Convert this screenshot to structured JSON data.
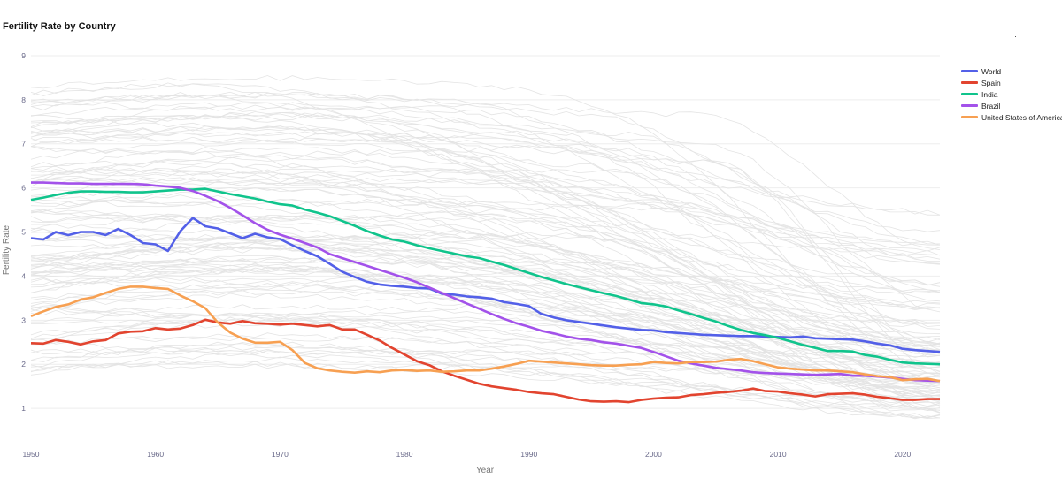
{
  "chart_data": {
    "type": "line",
    "title": "Fertility Rate by Country",
    "xlabel": "Year",
    "ylabel": "Fertility Rate",
    "xlim": [
      1950,
      2023
    ],
    "ylim": [
      0,
      9.5
    ],
    "x_ticks": [
      1950,
      1960,
      1970,
      1980,
      1990,
      2000,
      2010,
      2020
    ],
    "y_ticks": [
      1,
      2,
      3,
      4,
      5,
      6,
      7,
      8,
      9
    ],
    "grid": "horizontal",
    "legend_position": "right",
    "background_series_color": "#e4e4e4",
    "series": [
      {
        "name": "World",
        "color": "#5360e8",
        "x": [
          1950,
          1951,
          1952,
          1953,
          1954,
          1955,
          1956,
          1957,
          1958,
          1959,
          1960,
          1961,
          1962,
          1963,
          1964,
          1965,
          1966,
          1967,
          1968,
          1969,
          1970,
          1971,
          1972,
          1973,
          1974,
          1975,
          1976,
          1977,
          1978,
          1979,
          1980,
          1981,
          1982,
          1983,
          1984,
          1985,
          1986,
          1987,
          1988,
          1989,
          1990,
          1991,
          1992,
          1993,
          1994,
          1995,
          1996,
          1997,
          1998,
          1999,
          2000,
          2001,
          2002,
          2003,
          2004,
          2005,
          2006,
          2007,
          2008,
          2009,
          2010,
          2011,
          2012,
          2013,
          2014,
          2015,
          2016,
          2017,
          2018,
          2019,
          2020,
          2021,
          2022,
          2023
        ],
        "values": [
          4.86,
          4.83,
          5.0,
          4.93,
          5.0,
          5.0,
          4.93,
          5.07,
          4.93,
          4.75,
          4.72,
          4.57,
          5.02,
          5.32,
          5.13,
          5.08,
          4.97,
          4.86,
          4.96,
          4.88,
          4.84,
          4.7,
          4.57,
          4.45,
          4.28,
          4.1,
          3.98,
          3.87,
          3.81,
          3.78,
          3.76,
          3.73,
          3.72,
          3.6,
          3.58,
          3.54,
          3.52,
          3.49,
          3.41,
          3.37,
          3.32,
          3.14,
          3.06,
          3.0,
          2.96,
          2.92,
          2.88,
          2.84,
          2.81,
          2.78,
          2.77,
          2.73,
          2.71,
          2.69,
          2.67,
          2.66,
          2.65,
          2.64,
          2.64,
          2.63,
          2.62,
          2.61,
          2.63,
          2.59,
          2.58,
          2.57,
          2.56,
          2.52,
          2.47,
          2.43,
          2.35,
          2.32,
          2.3,
          2.28
        ]
      },
      {
        "name": "Spain",
        "color": "#e2442f",
        "x": [
          1950,
          1951,
          1952,
          1953,
          1954,
          1955,
          1956,
          1957,
          1958,
          1959,
          1960,
          1961,
          1962,
          1963,
          1964,
          1965,
          1966,
          1967,
          1968,
          1969,
          1970,
          1971,
          1972,
          1973,
          1974,
          1975,
          1976,
          1977,
          1978,
          1979,
          1980,
          1981,
          1982,
          1983,
          1984,
          1985,
          1986,
          1987,
          1988,
          1989,
          1990,
          1991,
          1992,
          1993,
          1994,
          1995,
          1996,
          1997,
          1998,
          1999,
          2000,
          2001,
          2002,
          2003,
          2004,
          2005,
          2006,
          2007,
          2008,
          2009,
          2010,
          2011,
          2012,
          2013,
          2014,
          2015,
          2016,
          2017,
          2018,
          2019,
          2020,
          2021,
          2022,
          2023
        ],
        "values": [
          2.48,
          2.47,
          2.55,
          2.51,
          2.45,
          2.52,
          2.55,
          2.7,
          2.74,
          2.75,
          2.82,
          2.79,
          2.81,
          2.89,
          3.01,
          2.95,
          2.92,
          2.98,
          2.93,
          2.92,
          2.9,
          2.92,
          2.89,
          2.86,
          2.89,
          2.79,
          2.79,
          2.67,
          2.54,
          2.37,
          2.22,
          2.07,
          1.98,
          1.84,
          1.74,
          1.65,
          1.56,
          1.5,
          1.46,
          1.42,
          1.37,
          1.34,
          1.32,
          1.26,
          1.2,
          1.16,
          1.15,
          1.16,
          1.14,
          1.19,
          1.22,
          1.24,
          1.25,
          1.3,
          1.32,
          1.35,
          1.37,
          1.4,
          1.45,
          1.39,
          1.38,
          1.34,
          1.31,
          1.27,
          1.32,
          1.33,
          1.34,
          1.31,
          1.26,
          1.23,
          1.19,
          1.19,
          1.21,
          1.21
        ]
      },
      {
        "name": "India",
        "color": "#10c48c",
        "x": [
          1950,
          1951,
          1952,
          1953,
          1954,
          1955,
          1956,
          1957,
          1958,
          1959,
          1960,
          1961,
          1962,
          1963,
          1964,
          1965,
          1966,
          1967,
          1968,
          1969,
          1970,
          1971,
          1972,
          1973,
          1974,
          1975,
          1976,
          1977,
          1978,
          1979,
          1980,
          1981,
          1982,
          1983,
          1984,
          1985,
          1986,
          1987,
          1988,
          1989,
          1990,
          1991,
          1992,
          1993,
          1994,
          1995,
          1996,
          1997,
          1998,
          1999,
          2000,
          2001,
          2002,
          2003,
          2004,
          2005,
          2006,
          2007,
          2008,
          2009,
          2010,
          2011,
          2012,
          2013,
          2014,
          2015,
          2016,
          2017,
          2018,
          2019,
          2020,
          2021,
          2022,
          2023
        ],
        "values": [
          5.73,
          5.78,
          5.84,
          5.89,
          5.92,
          5.92,
          5.91,
          5.91,
          5.9,
          5.9,
          5.92,
          5.94,
          5.96,
          5.96,
          5.98,
          5.92,
          5.86,
          5.81,
          5.76,
          5.69,
          5.63,
          5.6,
          5.51,
          5.44,
          5.36,
          5.25,
          5.14,
          5.02,
          4.92,
          4.83,
          4.78,
          4.7,
          4.63,
          4.57,
          4.51,
          4.45,
          4.41,
          4.33,
          4.25,
          4.16,
          4.07,
          3.98,
          3.9,
          3.82,
          3.75,
          3.68,
          3.61,
          3.55,
          3.47,
          3.39,
          3.36,
          3.31,
          3.22,
          3.14,
          3.05,
          2.97,
          2.87,
          2.78,
          2.71,
          2.66,
          2.6,
          2.52,
          2.44,
          2.37,
          2.3,
          2.3,
          2.29,
          2.21,
          2.17,
          2.1,
          2.04,
          2.02,
          2.01,
          2.0
        ]
      },
      {
        "name": "Brazil",
        "color": "#a352ea",
        "x": [
          1950,
          1951,
          1952,
          1953,
          1954,
          1955,
          1956,
          1957,
          1958,
          1959,
          1960,
          1961,
          1962,
          1963,
          1964,
          1965,
          1966,
          1967,
          1968,
          1969,
          1970,
          1971,
          1972,
          1973,
          1974,
          1975,
          1976,
          1977,
          1978,
          1979,
          1980,
          1981,
          1982,
          1983,
          1984,
          1985,
          1986,
          1987,
          1988,
          1989,
          1990,
          1991,
          1992,
          1993,
          1994,
          1995,
          1996,
          1997,
          1998,
          1999,
          2000,
          2001,
          2002,
          2003,
          2004,
          2005,
          2006,
          2007,
          2008,
          2009,
          2010,
          2011,
          2012,
          2013,
          2014,
          2015,
          2016,
          2017,
          2018,
          2019,
          2020,
          2021,
          2022,
          2023
        ],
        "values": [
          6.12,
          6.12,
          6.11,
          6.1,
          6.1,
          6.09,
          6.09,
          6.09,
          6.09,
          6.08,
          6.05,
          6.03,
          6.0,
          5.93,
          5.82,
          5.7,
          5.55,
          5.38,
          5.2,
          5.05,
          4.94,
          4.85,
          4.75,
          4.65,
          4.5,
          4.41,
          4.32,
          4.23,
          4.14,
          4.05,
          3.96,
          3.86,
          3.74,
          3.62,
          3.5,
          3.38,
          3.26,
          3.14,
          3.03,
          2.93,
          2.85,
          2.76,
          2.7,
          2.63,
          2.58,
          2.55,
          2.5,
          2.47,
          2.42,
          2.37,
          2.28,
          2.18,
          2.08,
          2.02,
          1.97,
          1.92,
          1.89,
          1.86,
          1.82,
          1.8,
          1.79,
          1.78,
          1.77,
          1.76,
          1.77,
          1.78,
          1.74,
          1.74,
          1.72,
          1.7,
          1.67,
          1.64,
          1.63,
          1.62
        ]
      },
      {
        "name": "United States of America",
        "color": "#f7a052",
        "x": [
          1950,
          1951,
          1952,
          1953,
          1954,
          1955,
          1956,
          1957,
          1958,
          1959,
          1960,
          1961,
          1962,
          1963,
          1964,
          1965,
          1966,
          1967,
          1968,
          1969,
          1970,
          1971,
          1972,
          1973,
          1974,
          1975,
          1976,
          1977,
          1978,
          1979,
          1980,
          1981,
          1982,
          1983,
          1984,
          1985,
          1986,
          1987,
          1988,
          1989,
          1990,
          1991,
          1992,
          1993,
          1994,
          1995,
          1996,
          1997,
          1998,
          1999,
          2000,
          2001,
          2002,
          2003,
          2004,
          2005,
          2006,
          2007,
          2008,
          2009,
          2010,
          2011,
          2012,
          2013,
          2014,
          2015,
          2016,
          2017,
          2018,
          2019,
          2020,
          2021,
          2022,
          2023
        ],
        "values": [
          3.09,
          3.2,
          3.3,
          3.36,
          3.47,
          3.52,
          3.62,
          3.71,
          3.76,
          3.76,
          3.73,
          3.71,
          3.56,
          3.43,
          3.27,
          2.95,
          2.72,
          2.58,
          2.49,
          2.49,
          2.51,
          2.32,
          2.03,
          1.91,
          1.86,
          1.83,
          1.81,
          1.84,
          1.82,
          1.86,
          1.87,
          1.85,
          1.86,
          1.83,
          1.84,
          1.86,
          1.86,
          1.9,
          1.95,
          2.01,
          2.08,
          2.06,
          2.04,
          2.02,
          2.0,
          1.98,
          1.97,
          1.97,
          1.99,
          2.0,
          2.05,
          2.03,
          2.02,
          2.05,
          2.05,
          2.06,
          2.1,
          2.12,
          2.07,
          2.0,
          1.93,
          1.9,
          1.88,
          1.86,
          1.86,
          1.84,
          1.82,
          1.77,
          1.73,
          1.71,
          1.64,
          1.66,
          1.67,
          1.62
        ]
      }
    ]
  }
}
